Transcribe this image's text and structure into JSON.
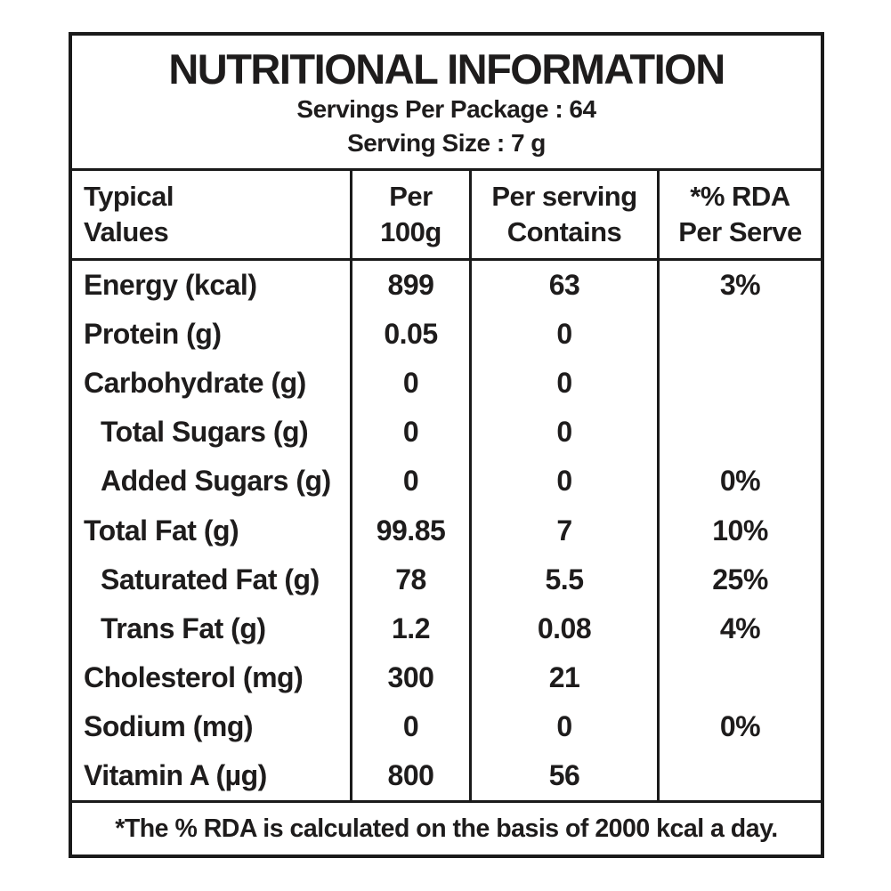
{
  "colors": {
    "text": "#1e1c1c",
    "border": "#1a1a1a",
    "background": "#ffffff"
  },
  "header": {
    "title": "NUTRITIONAL INFORMATION",
    "servings_per_package": "Servings Per Package : 64",
    "serving_size": "Serving Size : 7 g"
  },
  "table": {
    "columns": [
      {
        "line1": "Typical",
        "line2": "Values"
      },
      {
        "line1": "Per",
        "line2": "100g"
      },
      {
        "line1": "Per serving",
        "line2": "Contains"
      },
      {
        "line1": "*% RDA",
        "line2": "Per Serve"
      }
    ],
    "rows": [
      {
        "label": "Energy (kcal)",
        "per_100g": "899",
        "per_serving": "63",
        "rda": "3%"
      },
      {
        "label": "Protein (g)",
        "per_100g": "0.05",
        "per_serving": "0",
        "rda": ""
      },
      {
        "label": "Carbohydrate (g)",
        "per_100g": "0",
        "per_serving": "0",
        "rda": ""
      },
      {
        "label": "Total Sugars (g)",
        "per_100g": "0",
        "per_serving": "0",
        "rda": ""
      },
      {
        "label": "Added Sugars (g)",
        "per_100g": "0",
        "per_serving": "0",
        "rda": "0%"
      },
      {
        "label": "Total Fat (g)",
        "per_100g": "99.85",
        "per_serving": "7",
        "rda": "10%"
      },
      {
        "label": "Saturated Fat (g)",
        "per_100g": "78",
        "per_serving": "5.5",
        "rda": "25%"
      },
      {
        "label": "Trans Fat (g)",
        "per_100g": "1.2",
        "per_serving": "0.08",
        "rda": "4%"
      },
      {
        "label": "Cholesterol (mg)",
        "per_100g": "300",
        "per_serving": "21",
        "rda": ""
      },
      {
        "label": "Sodium (mg)",
        "per_100g": "0",
        "per_serving": "0",
        "rda": "0%"
      },
      {
        "label": "Vitamin A (µg)",
        "per_100g": "800",
        "per_serving": "56",
        "rda": ""
      }
    ]
  },
  "footnote": "*The % RDA is calculated on the basis of 2000 kcal a day."
}
